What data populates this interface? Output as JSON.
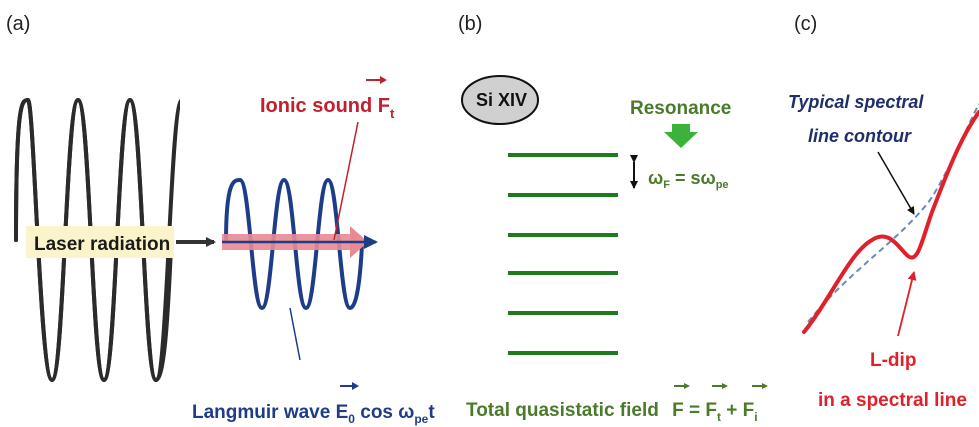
{
  "panels": [
    {
      "label": "(a)"
    },
    {
      "label": "(b)"
    },
    {
      "label": "(c)"
    }
  ],
  "panel_a": {
    "laser_label": "Laser radiation",
    "ionic_label": "Ionic sound F",
    "ionic_sub": "t",
    "langmuir_label": "Langmuir wave E",
    "langmuir_sub0": "0",
    "langmuir_mid": " cos ω",
    "langmuir_sub_pe": "pe",
    "langmuir_end": "t",
    "colors": {
      "laser": "#2b2b2b",
      "langmuir": "#1f3c88",
      "ionic": "#c0202e",
      "arrow_fill": "#e98a93",
      "label_bg": "#fbf3c9"
    }
  },
  "panel_b": {
    "ion_label": "Si XIV",
    "resonance_label": "Resonance",
    "omega_F": "ω",
    "omega_F_sub": "F",
    "equals_s_omega": " = sω",
    "omega_pe_sub": "pe",
    "total_label": "Total quasistatic field",
    "eq_F": "F",
    "eq_equals": " = ",
    "eq_Ft": "F",
    "eq_Ft_sub": "t",
    "eq_plus": " + ",
    "eq_Fi": "F",
    "eq_Fi_sub": "i",
    "level_count": 6,
    "colors": {
      "levels": "#1f7a1f",
      "text": "#4a7a2a",
      "arrow": "#3bb33b",
      "ellipse": "#d0d0d0"
    }
  },
  "panel_c": {
    "contour_label_line1": "Typical spectral",
    "contour_label_line2": "line contour",
    "dip_label_line1": "L-dip",
    "dip_label_line2": "in a spectral line",
    "colors": {
      "contour_text": "#1f2f6b",
      "dip": "#e0202a",
      "dashed": "#6a8ab8"
    }
  }
}
